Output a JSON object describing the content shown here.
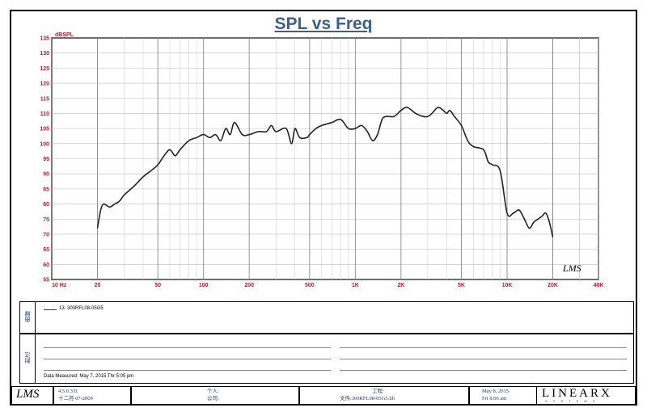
{
  "title": "SPL vs Freq",
  "chart_data": {
    "type": "line",
    "title": "SPL vs Freq",
    "ylabel": "dBSPL",
    "xlabel": "",
    "xscale": "log",
    "xlim": [
      10,
      40000
    ],
    "ylim": [
      55,
      135
    ],
    "y_ticks": [
      55,
      60,
      65,
      70,
      75,
      80,
      85,
      90,
      95,
      100,
      105,
      110,
      115,
      120,
      125,
      130,
      135
    ],
    "x_tick_labels": [
      {
        "value": 10,
        "label": "10 Hz"
      },
      {
        "value": 20,
        "label": "20"
      },
      {
        "value": 50,
        "label": "50"
      },
      {
        "value": 100,
        "label": "100"
      },
      {
        "value": 200,
        "label": "200"
      },
      {
        "value": 500,
        "label": "500"
      },
      {
        "value": 1000,
        "label": "1K"
      },
      {
        "value": 2000,
        "label": "2K"
      },
      {
        "value": 5000,
        "label": "5K"
      },
      {
        "value": 10000,
        "label": "10K"
      },
      {
        "value": 20000,
        "label": "20K"
      },
      {
        "value": 40000,
        "label": "40K"
      }
    ],
    "series": [
      {
        "name": "13. 300RFL08-05G5",
        "color": "#222222",
        "x": [
          20,
          21,
          22,
          24,
          26,
          28,
          30,
          35,
          40,
          45,
          50,
          55,
          60,
          65,
          70,
          80,
          90,
          100,
          110,
          120,
          130,
          140,
          150,
          160,
          180,
          200,
          230,
          260,
          280,
          300,
          350,
          380,
          400,
          430,
          480,
          500,
          550,
          600,
          700,
          800,
          900,
          1000,
          1100,
          1200,
          1300,
          1400,
          1500,
          1600,
          1800,
          2000,
          2200,
          2500,
          2800,
          3000,
          3200,
          3500,
          3800,
          4000,
          4200,
          4500,
          5000,
          5500,
          6000,
          7000,
          7500,
          8000,
          9000,
          10000,
          11000,
          12000,
          13000,
          14000,
          15000,
          16000,
          17000,
          18000,
          19000,
          20000
        ],
        "y": [
          72,
          78,
          80,
          79,
          80,
          81,
          83,
          86,
          89,
          91,
          93,
          96,
          98,
          96,
          98,
          101,
          102,
          103,
          102,
          103,
          101,
          105,
          103,
          107,
          103,
          103,
          104,
          104,
          106,
          104,
          105,
          100,
          105,
          102,
          102,
          103,
          105,
          106,
          107,
          108,
          105,
          105,
          106,
          104,
          101,
          103,
          108,
          109,
          109,
          111,
          112,
          110,
          109,
          109,
          110,
          112,
          111,
          110,
          111,
          109,
          106,
          101,
          99,
          98,
          94,
          93,
          91,
          77,
          77,
          78,
          75,
          72,
          74,
          75,
          76,
          77,
          74,
          69
        ]
      }
    ],
    "grid": true,
    "annotation": "LMS"
  },
  "legend": {
    "side_label": "曲線",
    "entry": "13. 300RFL08-05G5"
  },
  "notes": {
    "side_label": "附注",
    "date_measured": "Data Measured: May 7, 2015  Thr  5:05 pm"
  },
  "footer": {
    "logo": "LMS",
    "version": "4.5.0.331",
    "version_date": "十二月 07-2009",
    "person_label": "个人:",
    "company_label": "公司:",
    "project_label": "工程:",
    "file_label": "文件:300RFL08-05G5.lib",
    "date_line1": "May 8, 2015",
    "date_line2": "Fri  8:06 am",
    "brand": "LINEARX",
    "brand_sub": "S Y S T E M S"
  }
}
